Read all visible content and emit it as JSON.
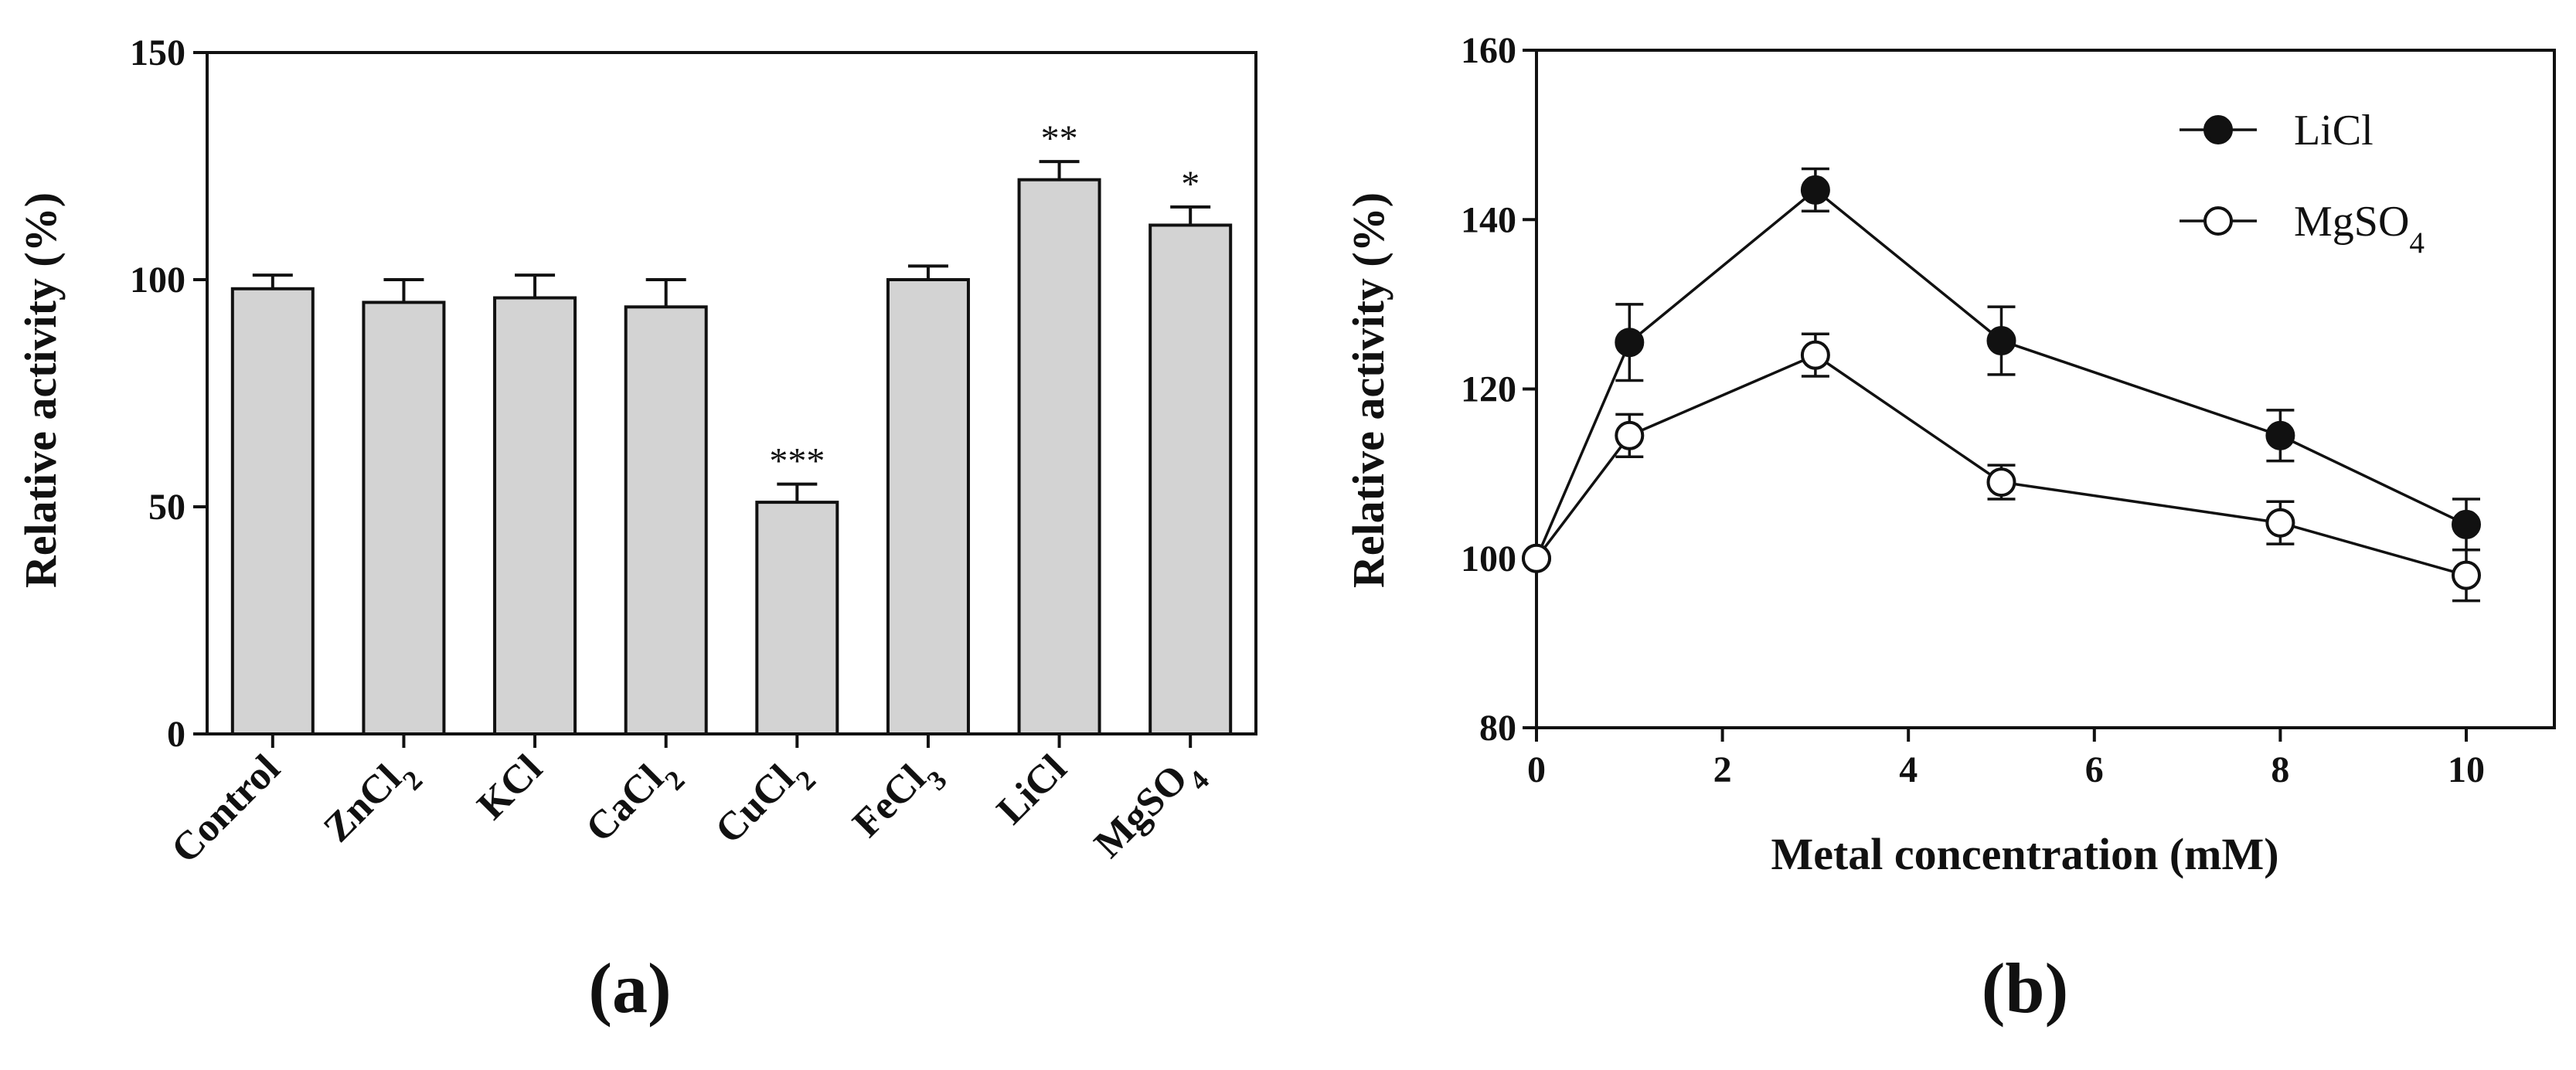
{
  "chart_data": [
    {
      "type": "bar",
      "panel_label": "(a)",
      "title": "",
      "xlabel": "",
      "ylabel": "Relative activity (%)",
      "ylim": [
        0,
        150
      ],
      "yticks": [
        "0",
        "50",
        "100",
        "150"
      ],
      "categories": [
        {
          "base": "Control",
          "sub": ""
        },
        {
          "base": "ZnCl",
          "sub": "2"
        },
        {
          "base": "KCl",
          "sub": ""
        },
        {
          "base": "CaCl",
          "sub": "2"
        },
        {
          "base": "CuCl",
          "sub": "2"
        },
        {
          "base": "FeCl",
          "sub": "3"
        },
        {
          "base": "LiCl",
          "sub": ""
        },
        {
          "base": "MgSO",
          "sub": "4"
        }
      ],
      "values": [
        98,
        95,
        96,
        94,
        51,
        100,
        122,
        112
      ],
      "errors": [
        3,
        5,
        5,
        6,
        4,
        3,
        4,
        4
      ],
      "significance": [
        "",
        "",
        "",
        "",
        "***",
        "",
        "**",
        "*"
      ],
      "bar_color": "#d3d3d3"
    },
    {
      "type": "line",
      "panel_label": "(b)",
      "title": "",
      "xlabel": "Metal concentration (mM)",
      "ylabel": "Relative activity (%)",
      "xlim": [
        0,
        10
      ],
      "ylim": [
        80,
        160
      ],
      "xticks": [
        "0",
        "2",
        "4",
        "6",
        "8",
        "10"
      ],
      "yticks": [
        "80",
        "100",
        "120",
        "140",
        "160"
      ],
      "legend_position": "top-right",
      "series": [
        {
          "name": "LiCl",
          "name_sub": "",
          "marker": "filled-circle",
          "x": [
            0,
            1,
            3,
            5,
            8,
            10
          ],
          "y": [
            100,
            125.5,
            143.5,
            125.7,
            114.5,
            104
          ],
          "errors": [
            0,
            4.5,
            2.5,
            4,
            3,
            3
          ]
        },
        {
          "name": "MgSO",
          "name_sub": "4",
          "marker": "open-circle",
          "x": [
            0,
            1,
            3,
            5,
            8,
            10
          ],
          "y": [
            100,
            114.5,
            124,
            109,
            104.2,
            98
          ],
          "errors": [
            0,
            2.5,
            2.5,
            2,
            2.5,
            3
          ]
        }
      ]
    }
  ]
}
